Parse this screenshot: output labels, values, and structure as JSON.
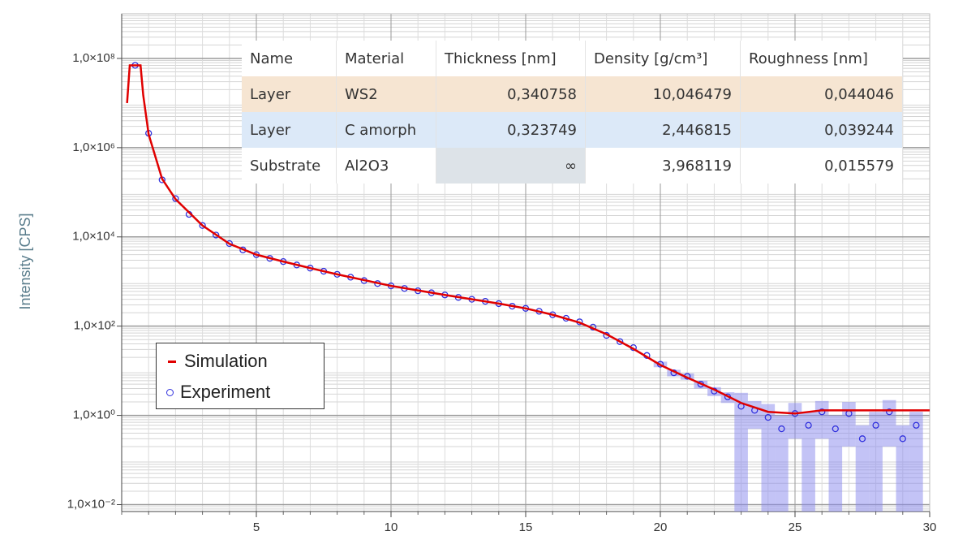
{
  "chart_data": {
    "type": "scatter-line",
    "y_label": "Intensity [CPS]",
    "log_y": true,
    "grid": true,
    "minor_grid": true,
    "legend": "lower-left",
    "xlim": [
      0,
      30
    ],
    "xticks": [
      5,
      10,
      15,
      20,
      25,
      30
    ],
    "ylim": [
      0.007,
      1000000000
    ],
    "yticks": [
      {
        "value": 0.01,
        "label": "1,0×10⁻²"
      },
      {
        "value": 1,
        "label": "1,0×10⁰"
      },
      {
        "value": 100,
        "label": "1,0×10²"
      },
      {
        "value": 10000,
        "label": "1,0×10⁴"
      },
      {
        "value": 1000000,
        "label": "1,0×10⁶"
      },
      {
        "value": 100000000,
        "label": "1,0×10⁸"
      }
    ],
    "series": [
      {
        "name": "Simulation",
        "color": "#e00000",
        "kind": "line",
        "x": [
          0.2,
          0.3,
          0.7,
          0.8,
          1,
          1.5,
          2,
          3,
          4,
          5,
          6,
          7,
          8,
          10,
          12,
          14,
          15,
          16,
          17,
          18,
          19,
          20,
          21,
          22,
          23,
          24,
          25,
          26,
          27,
          28,
          29,
          30
        ],
        "values": [
          10000000,
          70000000,
          70000000,
          15000000,
          2000000,
          200000,
          70000,
          18000,
          7000,
          4000,
          2800,
          2000,
          1450,
          800,
          500,
          320,
          250,
          180,
          120,
          66,
          31,
          13.5,
          7,
          3.8,
          1.9,
          1.2,
          1.1,
          1.3,
          1.3,
          1.3,
          1.3,
          1.3
        ]
      },
      {
        "name": "Experiment",
        "color": "#3030dd",
        "band_color": "#8888ee",
        "kind": "points",
        "x": [
          0.5,
          1,
          1.5,
          2,
          2.5,
          3,
          3.5,
          4,
          4.5,
          5,
          5.5,
          6,
          6.5,
          7,
          7.5,
          8,
          8.5,
          9,
          9.5,
          10,
          10.5,
          11,
          11.5,
          12,
          12.5,
          13,
          13.5,
          14,
          14.5,
          15,
          15.5,
          16,
          16.5,
          17,
          17.5,
          18,
          18.5,
          19,
          19.5,
          20,
          20.5,
          21,
          21.5,
          22,
          22.5,
          23,
          23.5,
          24,
          24.5,
          25,
          25.5,
          26,
          26.5,
          27,
          27.5,
          28,
          28.5,
          29,
          29.5
        ],
        "values": [
          70000000,
          2100000,
          190000,
          72000,
          32000,
          18000,
          11000,
          7100,
          5100,
          4000,
          3300,
          2800,
          2350,
          2000,
          1700,
          1450,
          1250,
          1050,
          900,
          800,
          700,
          620,
          560,
          500,
          440,
          400,
          360,
          320,
          280,
          250,
          215,
          180,
          150,
          125,
          95,
          62,
          45,
          33,
          22,
          14,
          9,
          7.5,
          5,
          3.5,
          2.6,
          1.6,
          1.3,
          0.9,
          0.5,
          1.1,
          0.6,
          1.2,
          0.5,
          1.1,
          0.3,
          0.6,
          1.2,
          0.3,
          0.6
        ],
        "errors": [
          0,
          0,
          0,
          0,
          0,
          0,
          0,
          0,
          0,
          0,
          0,
          0,
          0,
          0,
          0,
          0,
          0,
          0,
          0,
          0,
          0,
          0,
          0,
          0,
          0,
          0,
          0,
          0,
          0,
          0,
          0,
          0,
          0,
          0,
          0,
          0,
          0,
          0,
          0,
          2,
          1.5,
          1.2,
          1,
          0.8,
          0.7,
          1.6,
          0.8,
          0.9,
          0.5,
          0.8,
          0.6,
          0.9,
          0.5,
          0.9,
          0.3,
          0.6,
          1,
          0.3,
          0.6
        ]
      }
    ]
  },
  "table": {
    "columns": [
      "Name",
      "Material",
      "Thickness [nm]",
      "Density [g/cm³]",
      "Roughness [nm]"
    ],
    "rows": [
      [
        "Layer",
        "WS2",
        "0,340758",
        "10,046479",
        "0,044046"
      ],
      [
        "Layer",
        "C amorph",
        "0,323749",
        "2,446815",
        "0,039244"
      ],
      [
        "Substrate",
        "Al2O3",
        "∞",
        "3,968119",
        "0,015579"
      ]
    ]
  }
}
